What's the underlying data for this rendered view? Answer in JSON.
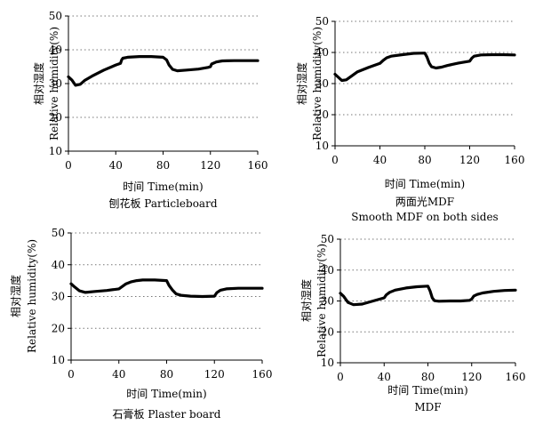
{
  "chart_data": [
    {
      "type": "line",
      "xlabel": "时间 Time(min)",
      "ylabel_cn": "相对湿度",
      "ylabel_en": "Relative humidity(%)",
      "caption": [
        "刨花板 Particleboard"
      ],
      "xlim": [
        0,
        160
      ],
      "ylim": [
        10,
        50
      ],
      "xticks": [
        0,
        40,
        80,
        120,
        160
      ],
      "yticks": [
        10,
        20,
        30,
        40,
        50
      ],
      "grid": "dotted-horizontal",
      "series": [
        {
          "x": [
            0,
            3,
            6,
            10,
            14,
            20,
            30,
            40,
            44,
            45,
            46,
            50,
            60,
            70,
            80,
            83,
            85,
            88,
            92,
            100,
            110,
            118,
            120,
            121,
            125,
            130,
            140,
            150,
            160
          ],
          "y": [
            32,
            31,
            29.5,
            29.8,
            31,
            32.2,
            34,
            35.5,
            36,
            37,
            37.5,
            37.8,
            38,
            38,
            37.8,
            37,
            35.5,
            34.2,
            33.8,
            34,
            34.3,
            34.8,
            35,
            35.8,
            36.4,
            36.7,
            36.8,
            36.8,
            36.8
          ]
        }
      ]
    },
    {
      "type": "line",
      "xlabel": "时间 Time(min)",
      "ylabel_cn": "相对湿度",
      "ylabel_en": "Relative humidity(%)",
      "caption": [
        "两面光MDF",
        "Smooth MDF on both sides"
      ],
      "xlim": [
        0,
        160
      ],
      "ylim": [
        10,
        50
      ],
      "xticks": [
        0,
        40,
        80,
        120,
        160
      ],
      "yticks": [
        10,
        20,
        30,
        40,
        50
      ],
      "grid": "dotted-horizontal",
      "series": [
        {
          "x": [
            0,
            3,
            6,
            10,
            15,
            20,
            30,
            40,
            43,
            46,
            50,
            60,
            70,
            80,
            82,
            84,
            86,
            90,
            95,
            100,
            110,
            120,
            122,
            124,
            130,
            140,
            150,
            160
          ],
          "y": [
            33,
            32,
            31,
            31.2,
            32.5,
            33.8,
            35.2,
            36.5,
            37.5,
            38.3,
            38.8,
            39.3,
            39.7,
            39.8,
            38.5,
            36.5,
            35.4,
            35,
            35.3,
            35.8,
            36.6,
            37.2,
            38.2,
            38.8,
            39.2,
            39.3,
            39.3,
            39.2
          ]
        }
      ]
    },
    {
      "type": "line",
      "xlabel": "时间 Time(min)",
      "ylabel_cn": "相对湿度",
      "ylabel_en": "Relative humidity(%)",
      "caption": [
        "石膏板 Plaster board"
      ],
      "xlim": [
        0,
        160
      ],
      "ylim": [
        10,
        50
      ],
      "xticks": [
        0,
        40,
        80,
        120,
        160
      ],
      "yticks": [
        10,
        20,
        30,
        40,
        50
      ],
      "grid": "dotted-horizontal",
      "series": [
        {
          "x": [
            0,
            3,
            7,
            12,
            20,
            30,
            40,
            43,
            46,
            50,
            55,
            60,
            70,
            80,
            82,
            85,
            88,
            92,
            100,
            110,
            120,
            122,
            125,
            130,
            140,
            150,
            160
          ],
          "y": [
            34,
            33,
            31.8,
            31.3,
            31.6,
            31.9,
            32.4,
            33.2,
            34,
            34.6,
            35,
            35.2,
            35.2,
            35,
            33.5,
            32,
            30.8,
            30.4,
            30.1,
            30,
            30.1,
            31.2,
            32,
            32.4,
            32.6,
            32.6,
            32.6
          ]
        }
      ]
    },
    {
      "type": "line",
      "xlabel": "时间 Time(min)",
      "ylabel_cn": "相对湿度",
      "ylabel_en": "Relative humidity(%)",
      "caption": [
        "MDF"
      ],
      "xlim": [
        0,
        160
      ],
      "ylim": [
        10,
        50
      ],
      "xticks": [
        0,
        40,
        80,
        120,
        160
      ],
      "yticks": [
        10,
        20,
        30,
        40,
        50
      ],
      "grid": "dotted-horizontal",
      "series": [
        {
          "x": [
            0,
            3,
            7,
            12,
            20,
            30,
            40,
            42,
            45,
            50,
            60,
            70,
            80,
            82,
            84,
            86,
            90,
            100,
            110,
            118,
            120,
            122,
            125,
            130,
            140,
            150,
            160
          ],
          "y": [
            32.5,
            31.5,
            29.5,
            28.8,
            29,
            30,
            31,
            32,
            32.8,
            33.5,
            34.2,
            34.6,
            34.8,
            33.2,
            31,
            30.1,
            29.9,
            30,
            30,
            30.2,
            30.6,
            31.6,
            32.1,
            32.6,
            33.1,
            33.4,
            33.5
          ]
        }
      ]
    }
  ]
}
